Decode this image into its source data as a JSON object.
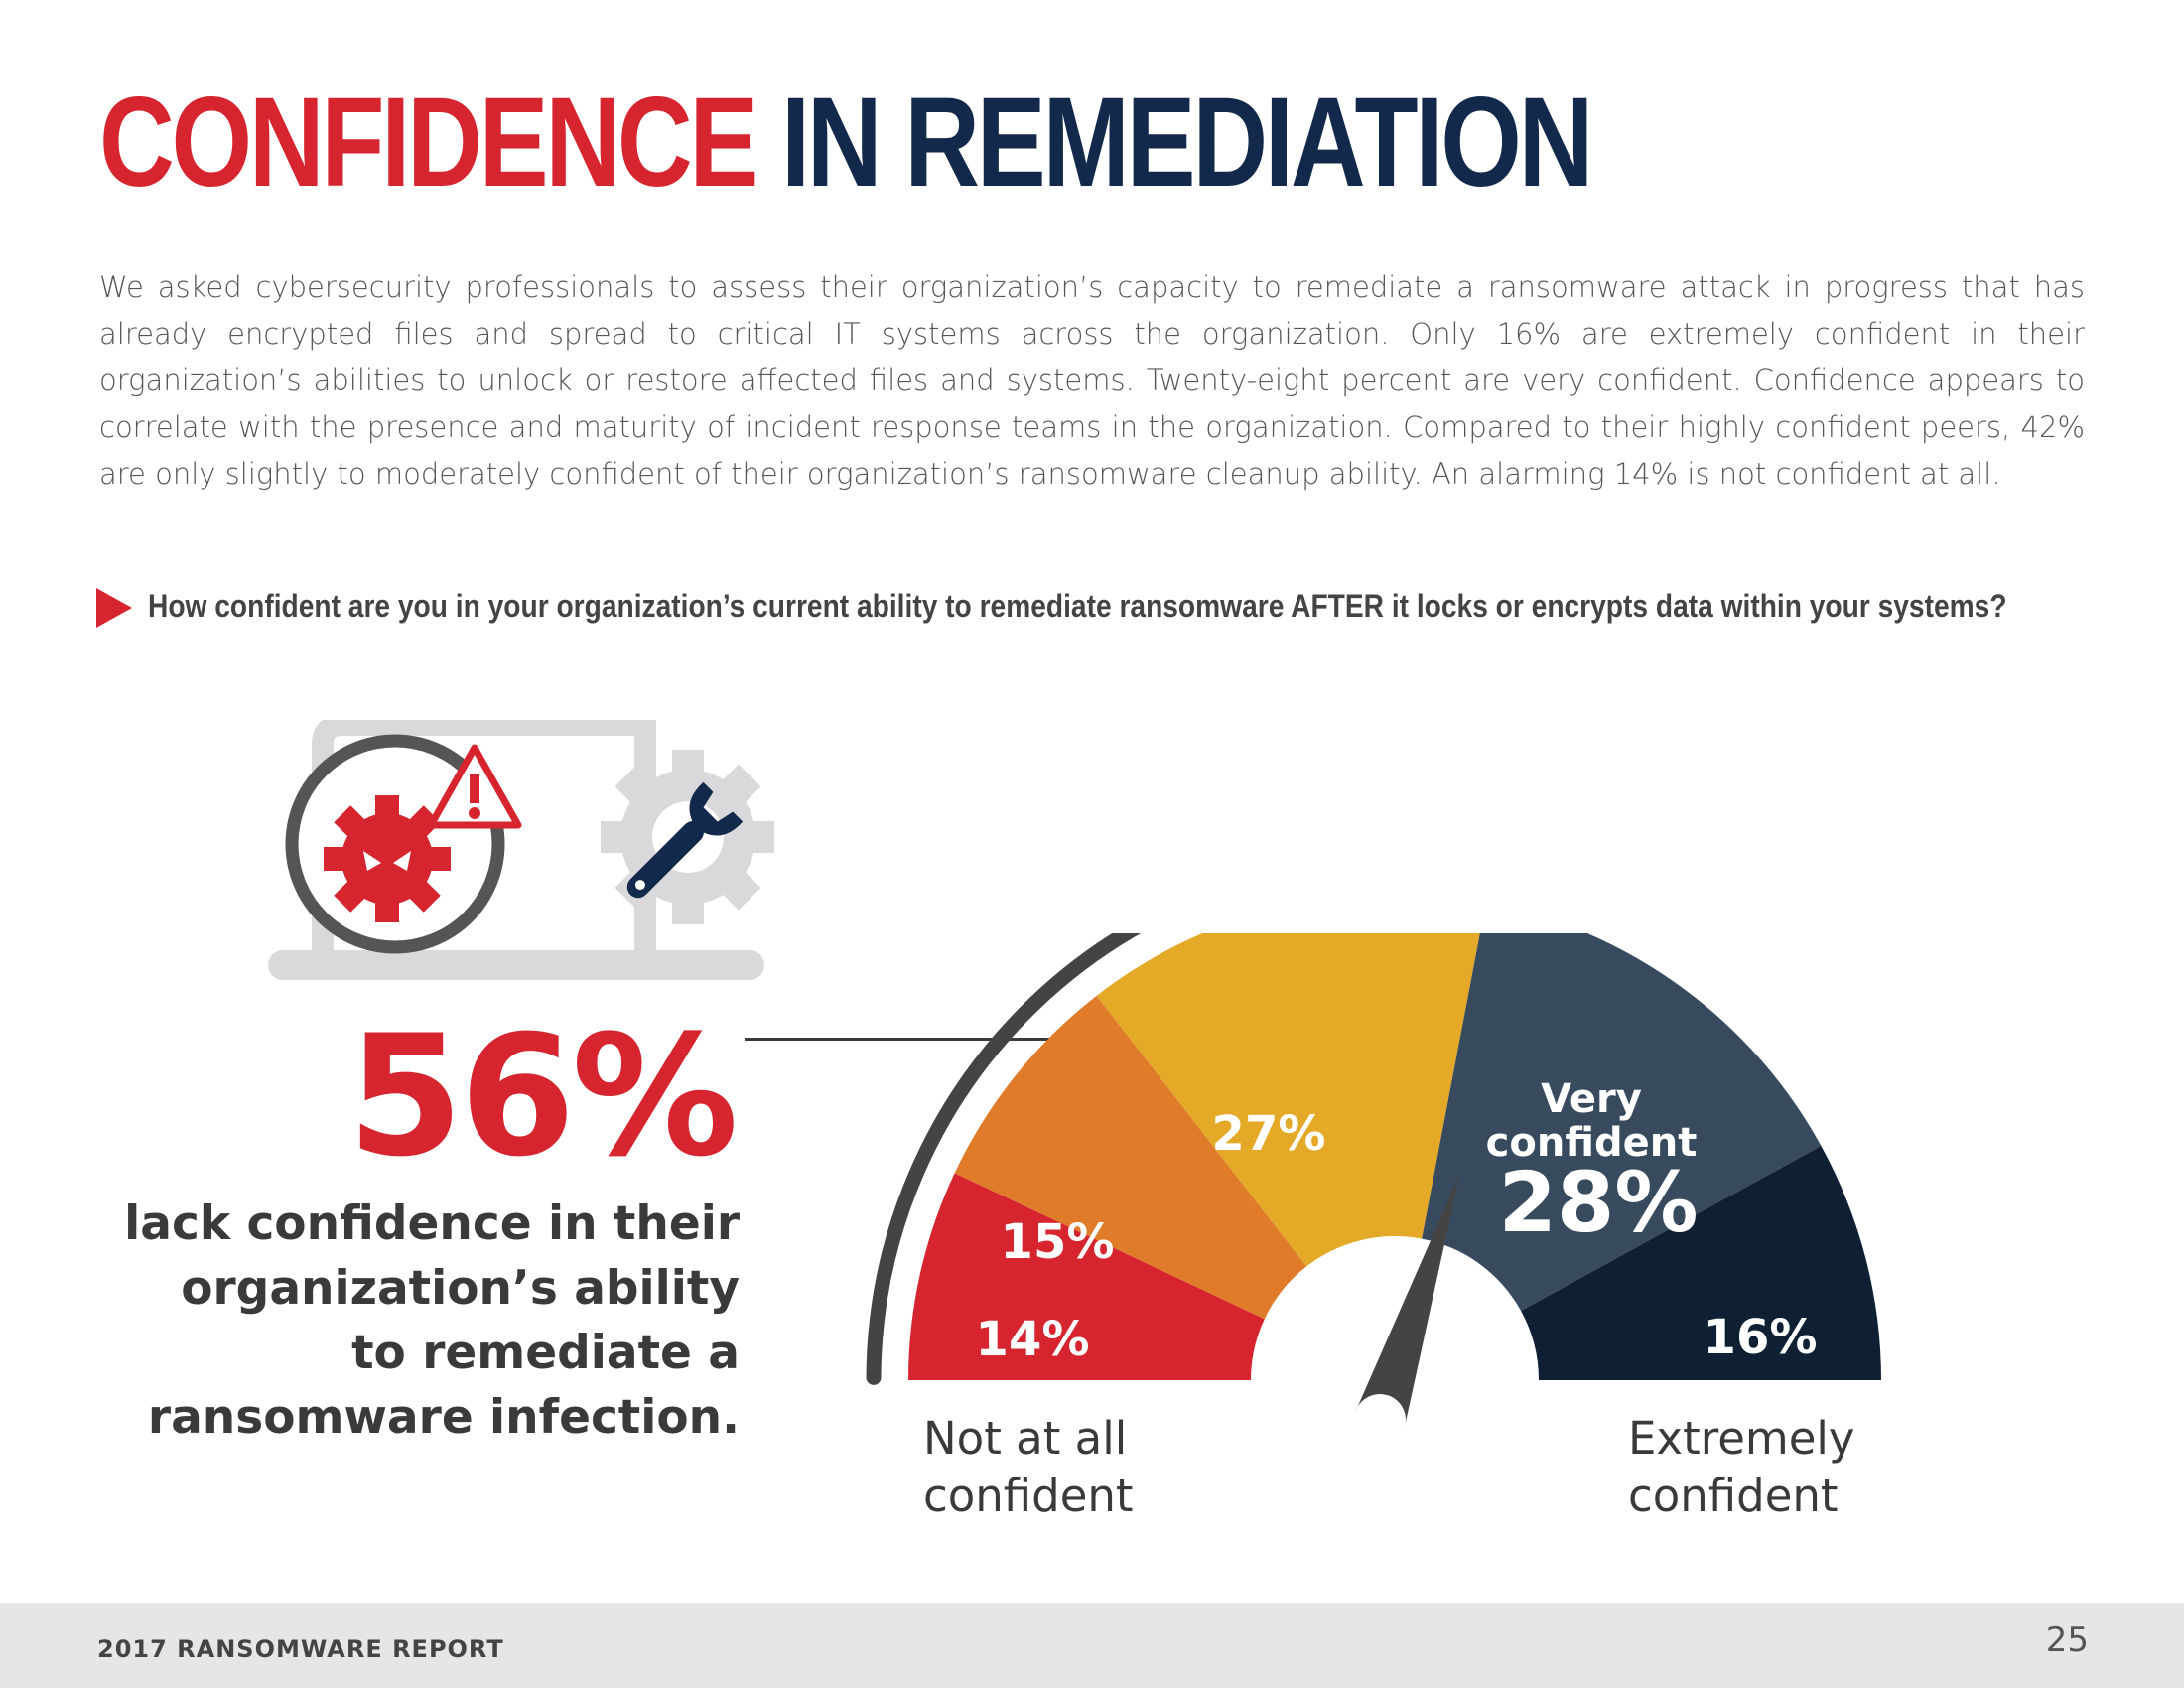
{
  "header": {
    "title_part1": "CONFIDENCE",
    "title_part2": "IN REMEDIATION"
  },
  "intro_text": "We asked cybersecurity professionals to assess their organization’s capacity to remediate a ransomware attack in progress that has already encrypted files and spread to critical IT systems across the organization. Only 16% are extremely confident in their organization’s abilities to unlock or restore affected files and systems. Twenty-eight percent are very confident. Confidence appears to correlate with the presence and maturity of incident response teams in the organization. Compared to their highly confident peers, 42% are only slightly to moderately confident of their organization’s ransomware cleanup ability. An alarming 14% is not confident at all.",
  "question": "How confident are you in your organization’s current ability to remediate ransomware AFTER it locks or encrypts data within your systems?",
  "highlight": {
    "value": "56%",
    "description": "lack confidence in their organization’s ability to remediate a ransomware infection."
  },
  "colors": {
    "red": "#d7252f",
    "navy": "#13294b",
    "orange": "#e07b2a",
    "yellow": "#e3a927",
    "slate": "#384b5e",
    "dark_navy": "#0f2035",
    "gray_icon": "#d9d9db",
    "needle": "#444444"
  },
  "icons": [
    "laptop-icon",
    "virus-gear-icon",
    "warning-icon",
    "gear-wrench-icon",
    "play-arrow-icon"
  ],
  "chart_data": {
    "type": "pie",
    "subtype": "semicircle-gauge",
    "categories": [
      "Not at all confident",
      "",
      "",
      "Very confident",
      "Extremely confident"
    ],
    "values": [
      14,
      15,
      27,
      28,
      16
    ],
    "value_labels": [
      "14%",
      "15%",
      "27%",
      "28%",
      "16%"
    ],
    "segment_title": [
      "",
      "",
      "",
      "Very confident",
      ""
    ],
    "axis_left_label": "Not at all confident",
    "axis_right_label": "Extremely confident",
    "needle_value": 60
  },
  "footer": {
    "report_title": "2017 RANSOMWARE REPORT",
    "page_number": "25"
  }
}
